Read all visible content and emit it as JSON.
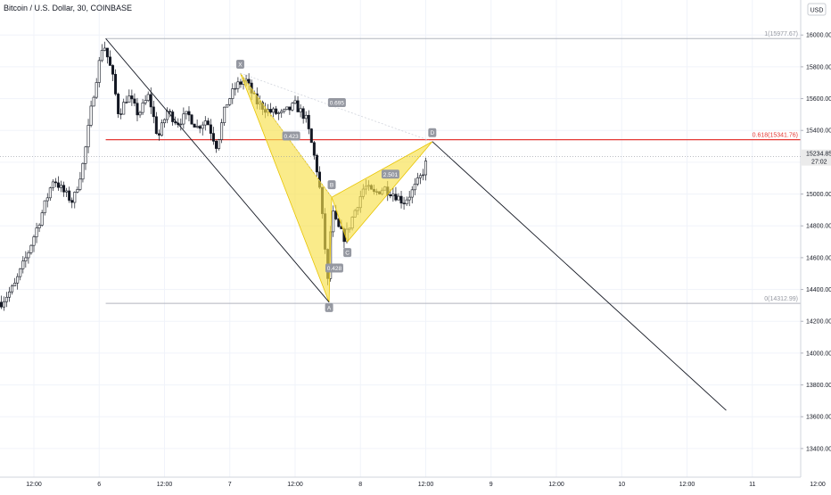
{
  "header": {
    "symbol_title": "Bitcoin / U.S. Dollar, 30, COINBASE",
    "currency": "USD"
  },
  "chart_data": {
    "type": "candlestick",
    "instrument": "Bitcoin / U.S. Dollar",
    "interval": "30",
    "exchange": "COINBASE",
    "currency": "USD",
    "ylim": [
      13220,
      16220
    ],
    "y_ticks": [
      16000,
      15800,
      15600,
      15400,
      15200,
      15000,
      14800,
      14600,
      14400,
      14200,
      14000,
      13800,
      13600,
      13400
    ],
    "y_tick_labels": [
      "16000.00",
      "15800.00",
      "15600.00",
      "15400.00",
      "15200.00",
      "15000.00",
      "14800.00",
      "14600.00",
      "14400.00",
      "14200.00",
      "14000.00",
      "13800.00",
      "13600.00",
      "13400.00"
    ],
    "x_tick_labels": [
      {
        "label": "12:00",
        "day": 5.5
      },
      {
        "label": "6",
        "day": 6.0
      },
      {
        "label": "12:00",
        "day": 6.5
      },
      {
        "label": "7",
        "day": 7.0
      },
      {
        "label": "12:00",
        "day": 7.5
      },
      {
        "label": "8",
        "day": 8.0
      },
      {
        "label": "12:00",
        "day": 8.5
      },
      {
        "label": "9",
        "day": 9.0
      },
      {
        "label": "12:00",
        "day": 9.5
      },
      {
        "label": "10",
        "day": 10.0
      },
      {
        "label": "12:00",
        "day": 10.5
      },
      {
        "label": "11",
        "day": 11.0
      },
      {
        "label": "12:00",
        "day": 11.5
      }
    ],
    "price_path": [
      {
        "day": 5.25,
        "price": 14320
      },
      {
        "day": 5.35,
        "price": 14420
      },
      {
        "day": 5.45,
        "price": 14620
      },
      {
        "day": 5.55,
        "price": 14850
      },
      {
        "day": 5.65,
        "price": 15100
      },
      {
        "day": 5.72,
        "price": 15020
      },
      {
        "day": 5.8,
        "price": 14950
      },
      {
        "day": 5.88,
        "price": 15200
      },
      {
        "day": 5.95,
        "price": 15600
      },
      {
        "day": 6.03,
        "price": 15960
      },
      {
        "day": 6.1,
        "price": 15750
      },
      {
        "day": 6.15,
        "price": 15500
      },
      {
        "day": 6.22,
        "price": 15620
      },
      {
        "day": 6.3,
        "price": 15500
      },
      {
        "day": 6.38,
        "price": 15620
      },
      {
        "day": 6.45,
        "price": 15350
      },
      {
        "day": 6.52,
        "price": 15520
      },
      {
        "day": 6.6,
        "price": 15450
      },
      {
        "day": 6.68,
        "price": 15500
      },
      {
        "day": 6.75,
        "price": 15420
      },
      {
        "day": 6.82,
        "price": 15470
      },
      {
        "day": 6.9,
        "price": 15300
      },
      {
        "day": 6.97,
        "price": 15560
      },
      {
        "day": 7.05,
        "price": 15680
      },
      {
        "day": 7.12,
        "price": 15720
      },
      {
        "day": 7.2,
        "price": 15580
      },
      {
        "day": 7.3,
        "price": 15520
      },
      {
        "day": 7.4,
        "price": 15500
      },
      {
        "day": 7.5,
        "price": 15560
      },
      {
        "day": 7.58,
        "price": 15480
      },
      {
        "day": 7.63,
        "price": 15300
      },
      {
        "day": 7.68,
        "price": 15100
      },
      {
        "day": 7.72,
        "price": 14750
      },
      {
        "day": 7.75,
        "price": 14450
      },
      {
        "day": 7.78,
        "price": 14900
      },
      {
        "day": 7.82,
        "price": 14800
      },
      {
        "day": 7.88,
        "price": 14720
      },
      {
        "day": 7.95,
        "price": 14880
      },
      {
        "day": 8.03,
        "price": 15050
      },
      {
        "day": 8.1,
        "price": 15000
      },
      {
        "day": 8.18,
        "price": 15040
      },
      {
        "day": 8.26,
        "price": 15000
      },
      {
        "day": 8.33,
        "price": 14950
      },
      {
        "day": 8.4,
        "price": 15020
      },
      {
        "day": 8.47,
        "price": 15120
      },
      {
        "day": 8.52,
        "price": 15234.85
      }
    ],
    "current_price": {
      "value": 15234.85,
      "label": "15234.85",
      "countdown": "27:02"
    },
    "fib_levels": [
      {
        "ratio_label": "1(15977.67)",
        "price": 15977.67,
        "color": "#b2b5be"
      },
      {
        "ratio_label": "0.618(15341.76)",
        "price": 15341.76,
        "color": "#e53935"
      },
      {
        "ratio_label": "0(14312.99)",
        "price": 14312.99,
        "color": "#b2b5be"
      }
    ],
    "harmonic_pattern": {
      "color": "#f7e04b",
      "points": [
        {
          "label": "X",
          "day": 7.08,
          "price": 15760
        },
        {
          "label": "A",
          "day": 7.76,
          "price": 14320
        },
        {
          "label": "B",
          "day": 7.78,
          "price": 14980
        },
        {
          "label": "C",
          "day": 7.9,
          "price": 14700
        },
        {
          "label": "D",
          "day": 8.55,
          "price": 15330
        }
      ],
      "ratios": [
        {
          "label": "0.695",
          "day": 7.82,
          "price": 15575
        },
        {
          "label": "0.423",
          "day": 7.47,
          "price": 15365
        },
        {
          "label": "0.428",
          "day": 7.8,
          "price": 14535
        },
        {
          "label": "2.501",
          "day": 8.23,
          "price": 15125
        }
      ]
    },
    "trend_lines": [
      {
        "from": {
          "day": 6.05,
          "price": 15977.67
        },
        "to": {
          "day": 7.76,
          "price": 14320
        }
      },
      {
        "from": {
          "day": 8.55,
          "price": 15330
        },
        "to": {
          "day": 10.8,
          "price": 13640
        }
      }
    ],
    "grid": true
  }
}
